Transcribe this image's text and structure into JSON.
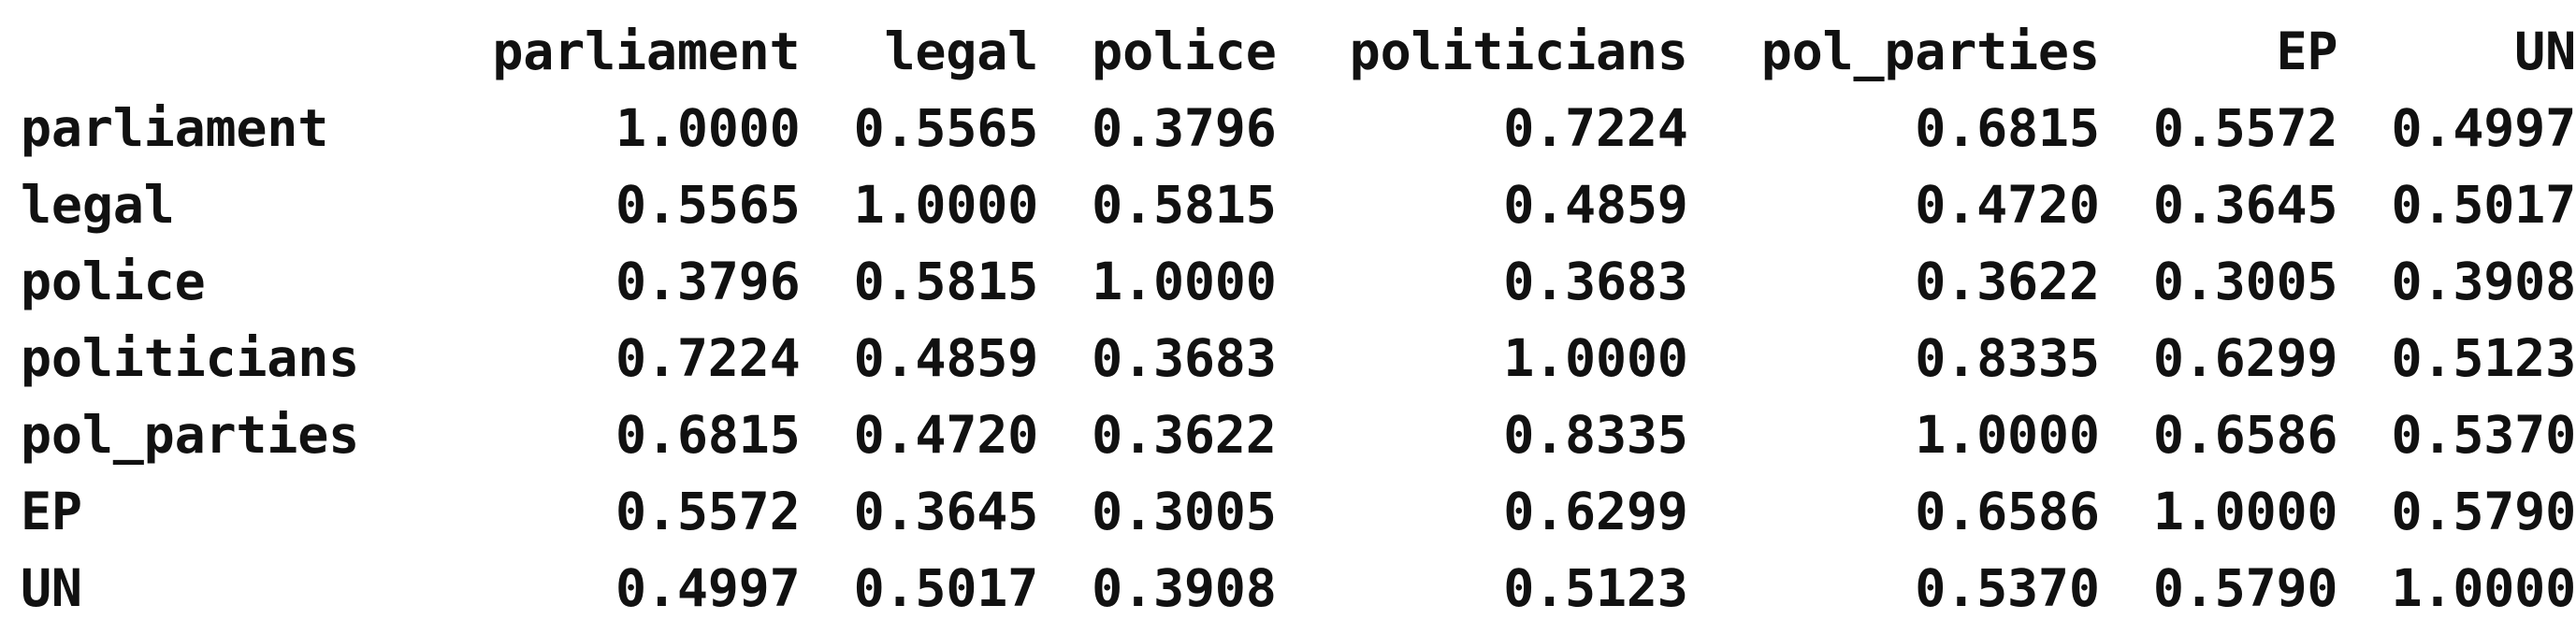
{
  "matrix": {
    "columns": [
      "parliament",
      "legal",
      "police",
      "politicians",
      "pol_parties",
      "EP",
      "UN"
    ],
    "rows": [
      {
        "name": "parliament",
        "values": [
          "1.0000",
          "0.5565",
          "0.3796",
          "0.7224",
          "0.6815",
          "0.5572",
          "0.4997"
        ]
      },
      {
        "name": "legal",
        "values": [
          "0.5565",
          "1.0000",
          "0.5815",
          "0.4859",
          "0.4720",
          "0.3645",
          "0.5017"
        ]
      },
      {
        "name": "police",
        "values": [
          "0.3796",
          "0.5815",
          "1.0000",
          "0.3683",
          "0.3622",
          "0.3005",
          "0.3908"
        ]
      },
      {
        "name": "politicians",
        "values": [
          "0.7224",
          "0.4859",
          "0.3683",
          "1.0000",
          "0.8335",
          "0.6299",
          "0.5123"
        ]
      },
      {
        "name": "pol_parties",
        "values": [
          "0.6815",
          "0.4720",
          "0.3622",
          "0.8335",
          "1.0000",
          "0.6586",
          "0.5370"
        ]
      },
      {
        "name": "EP",
        "values": [
          "0.5572",
          "0.3645",
          "0.3005",
          "0.6299",
          "0.6586",
          "1.0000",
          "0.5790"
        ]
      },
      {
        "name": "UN",
        "values": [
          "0.4997",
          "0.5017",
          "0.3908",
          "0.5123",
          "0.5370",
          "0.5790",
          "1.0000"
        ]
      }
    ]
  }
}
